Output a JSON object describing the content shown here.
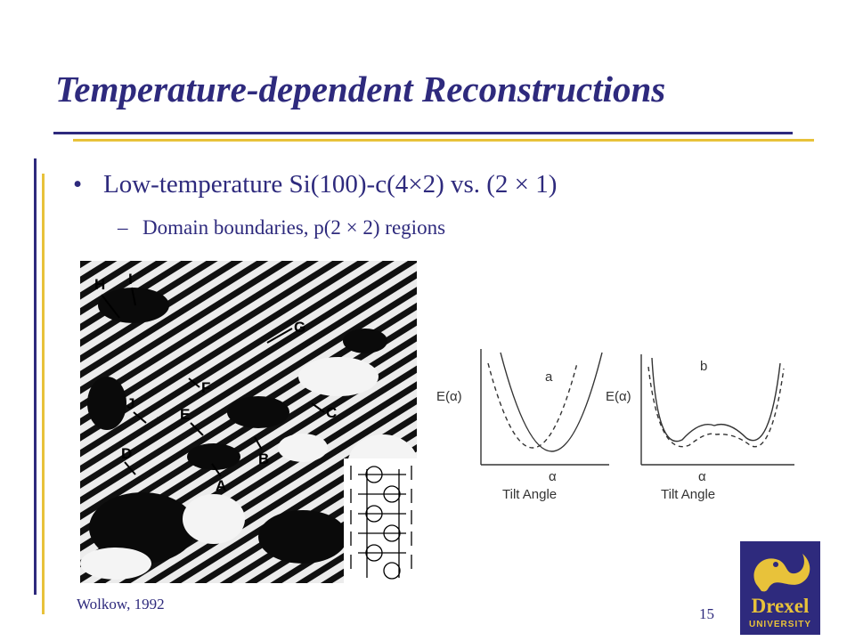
{
  "slide": {
    "title": "Temperature-dependent Reconstructions",
    "bullet": "Low-temperature Si(100)-c(4×2) vs. (2 × 1)",
    "sub_bullet": "Domain boundaries, p(2 × 2) regions",
    "bullet_marker": "•",
    "sub_marker": "–",
    "credit": "Wolkow, 1992",
    "page_number": "15"
  },
  "stm_image": {
    "labels": [
      "H",
      "I",
      "G",
      "F",
      "J",
      "E",
      "C",
      "D",
      "B",
      "A"
    ]
  },
  "plots": {
    "left": {
      "label": "a",
      "ylabel": "E(α)",
      "xlabel": "Tilt Angle",
      "marker": "α"
    },
    "right": {
      "label": "b",
      "ylabel": "E(α)",
      "xlabel": "Tilt Angle",
      "marker": "α"
    }
  },
  "logo": {
    "name": "Drexel",
    "sub": "UNIVERSITY"
  },
  "colors": {
    "primary": "#2e2a7d",
    "accent": "#e8c23a"
  }
}
